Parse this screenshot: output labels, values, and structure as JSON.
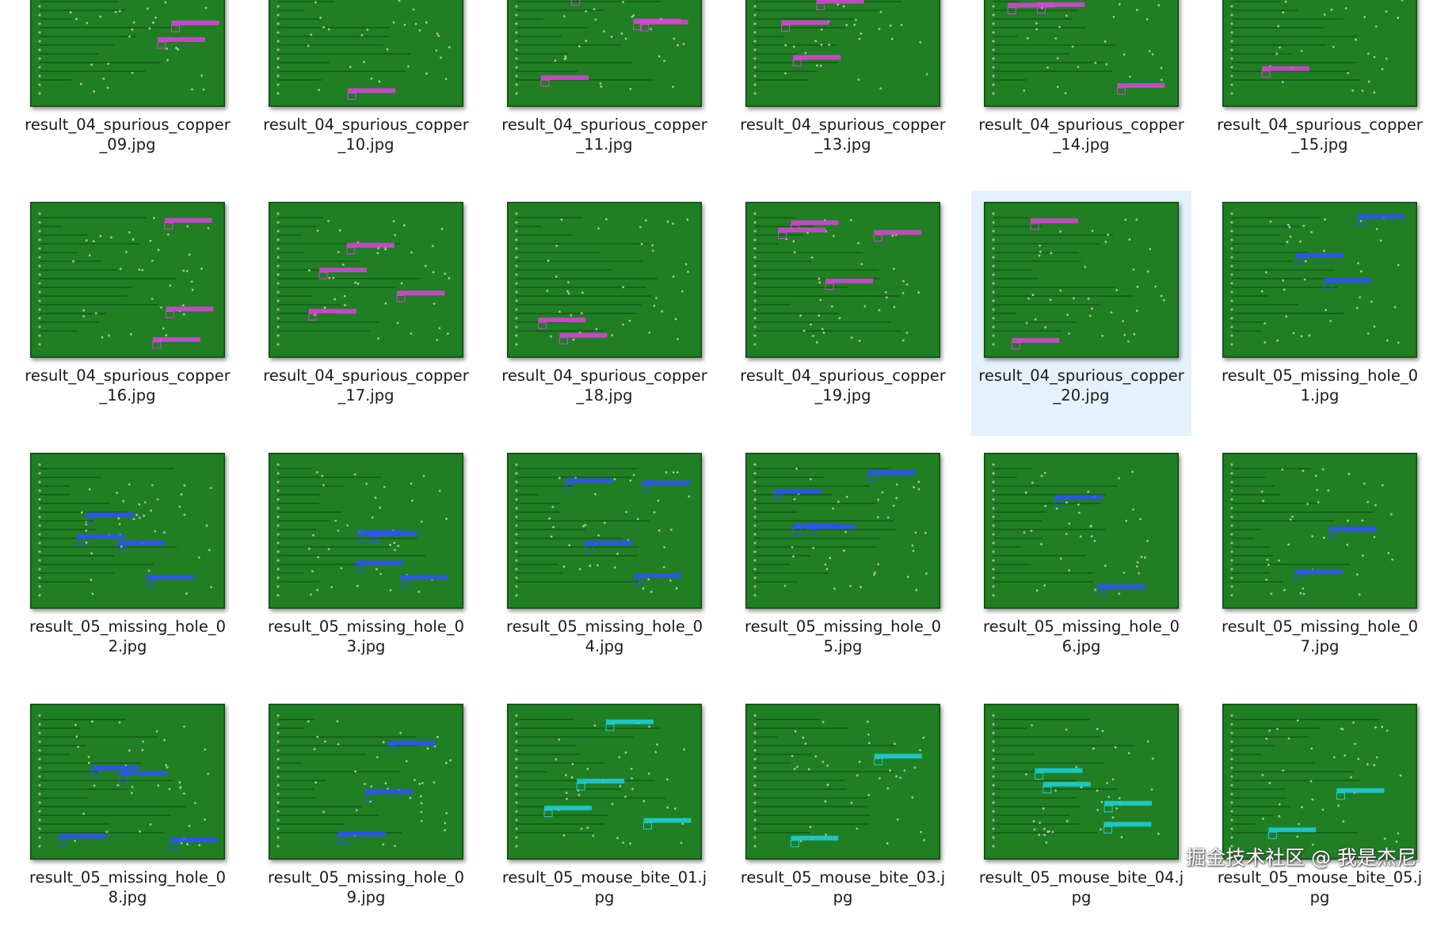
{
  "files": [
    {
      "name": "result_04_spurious_copper_09.jpg"
    },
    {
      "name": "result_04_spurious_copper_10.jpg"
    },
    {
      "name": "result_04_spurious_copper_11.jpg"
    },
    {
      "name": "result_04_spurious_copper_13.jpg"
    },
    {
      "name": "result_04_spurious_copper_14.jpg"
    },
    {
      "name": "result_04_spurious_copper_15.jpg"
    },
    {
      "name": "result_04_spurious_copper_16.jpg"
    },
    {
      "name": "result_04_spurious_copper_17.jpg"
    },
    {
      "name": "result_04_spurious_copper_18.jpg"
    },
    {
      "name": "result_04_spurious_copper_19.jpg"
    },
    {
      "name": "result_04_spurious_copper_20.jpg",
      "selected": true
    },
    {
      "name": "result_05_missing_hole_01.jpg"
    },
    {
      "name": "result_05_missing_hole_02.jpg"
    },
    {
      "name": "result_05_missing_hole_03.jpg"
    },
    {
      "name": "result_05_missing_hole_04.jpg"
    },
    {
      "name": "result_05_missing_hole_05.jpg"
    },
    {
      "name": "result_05_missing_hole_06.jpg"
    },
    {
      "name": "result_05_missing_hole_07.jpg"
    },
    {
      "name": "result_05_missing_hole_08.jpg"
    },
    {
      "name": "result_05_missing_hole_09.jpg"
    },
    {
      "name": "result_05_mouse_bite_01.jpg"
    },
    {
      "name": "result_05_mouse_bite_03.jpg"
    },
    {
      "name": "result_05_mouse_bite_04.jpg"
    },
    {
      "name": "result_05_mouse_bite_05.jpg"
    }
  ],
  "watermark": "掘金技术社区 @ 我是杰尼"
}
